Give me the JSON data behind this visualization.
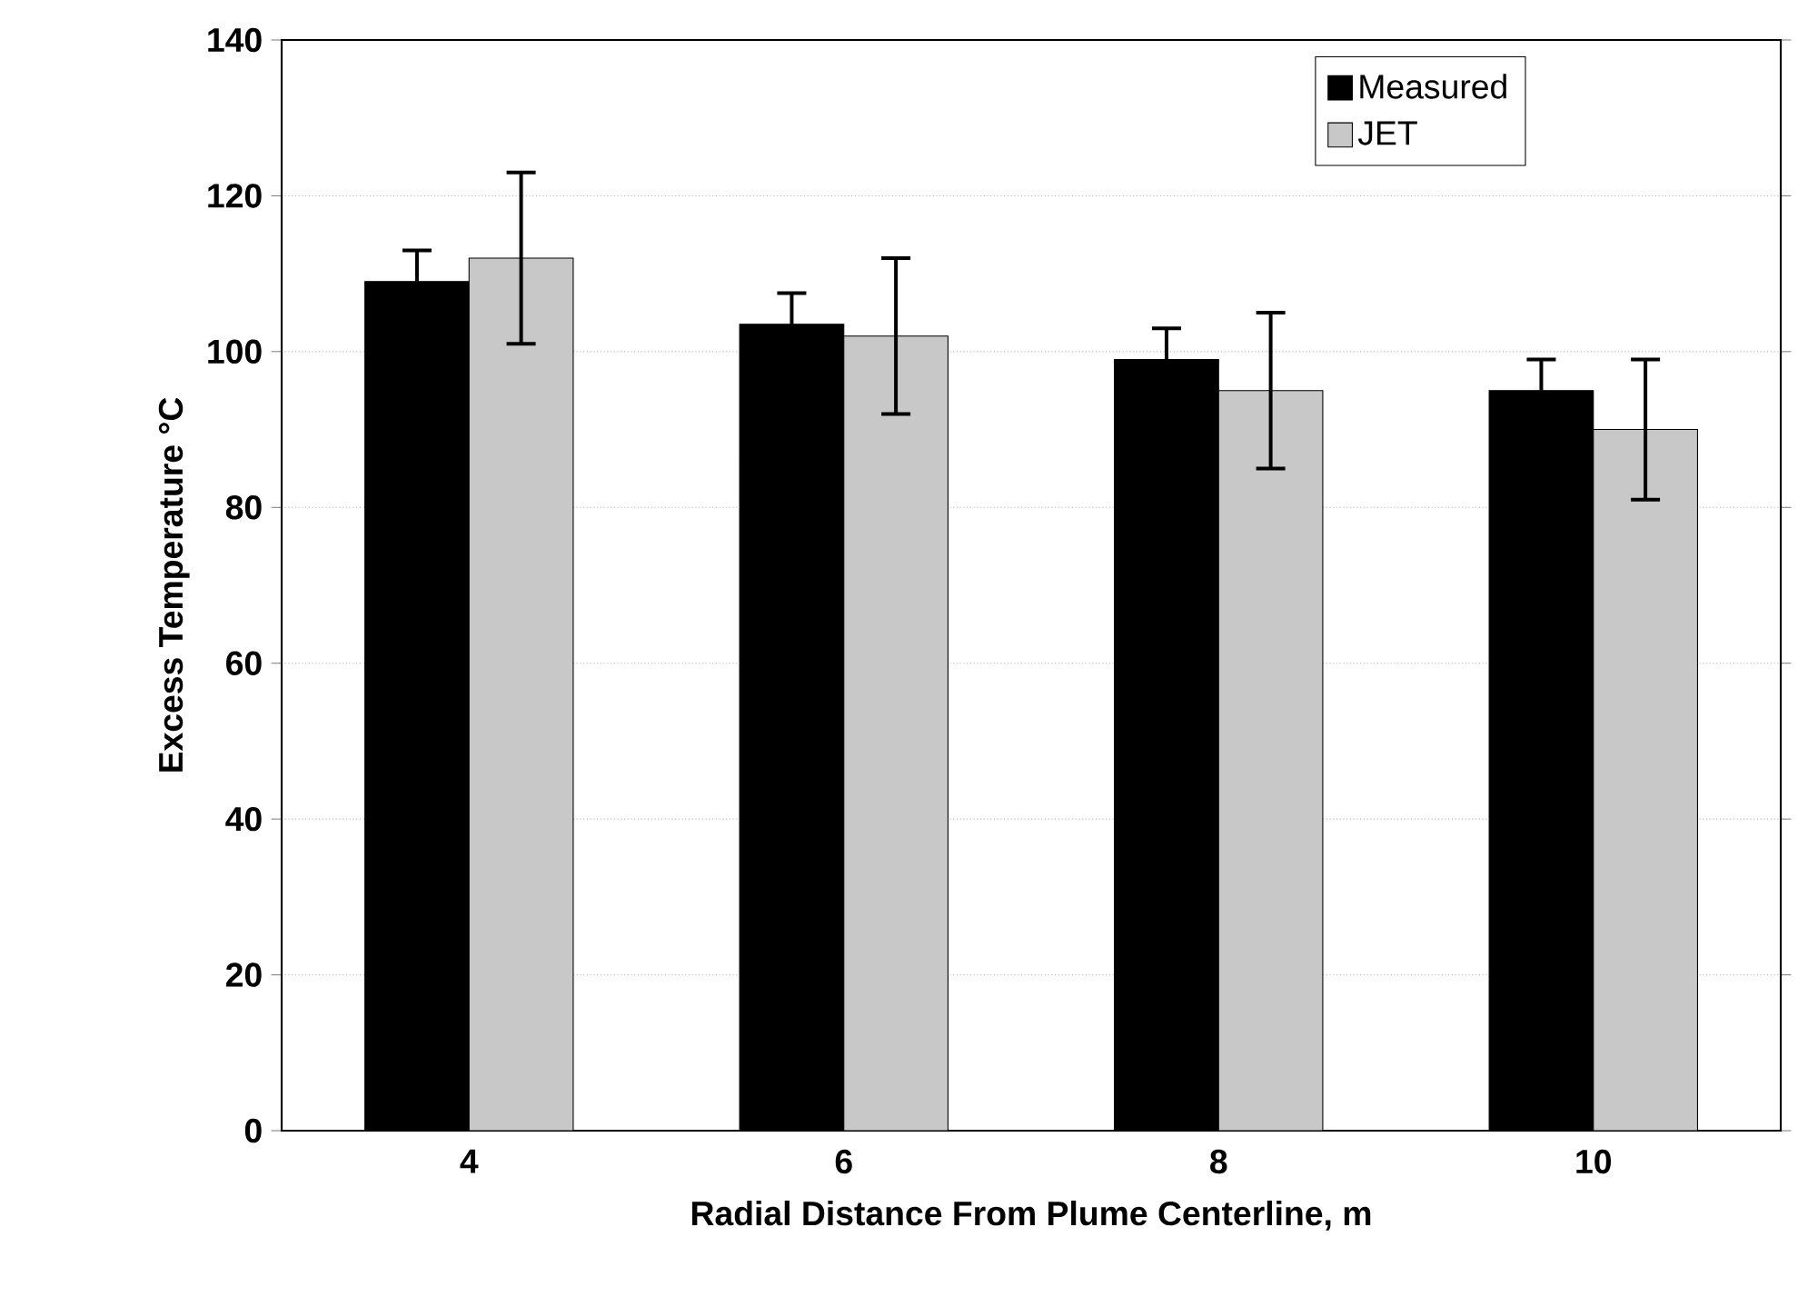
{
  "chart_data": {
    "type": "bar",
    "xlabel": "Radial Distance From Plume Centerline, m",
    "ylabel": "Excess Temperature °C",
    "categories": [
      "4",
      "6",
      "8",
      "10"
    ],
    "series": [
      {
        "name": "Measured",
        "color": "#000000",
        "values": [
          109,
          103.5,
          99,
          95
        ],
        "errors": [
          4,
          4,
          4,
          4
        ]
      },
      {
        "name": "JET",
        "color": "#c8c8c8",
        "values": [
          112,
          102,
          95,
          90
        ],
        "errors": [
          11,
          10,
          10,
          9
        ]
      }
    ],
    "ylim": [
      0,
      140
    ],
    "yticks": [
      0,
      20,
      40,
      60,
      80,
      100,
      120,
      140
    ],
    "grid": "y",
    "legend": "top right"
  }
}
